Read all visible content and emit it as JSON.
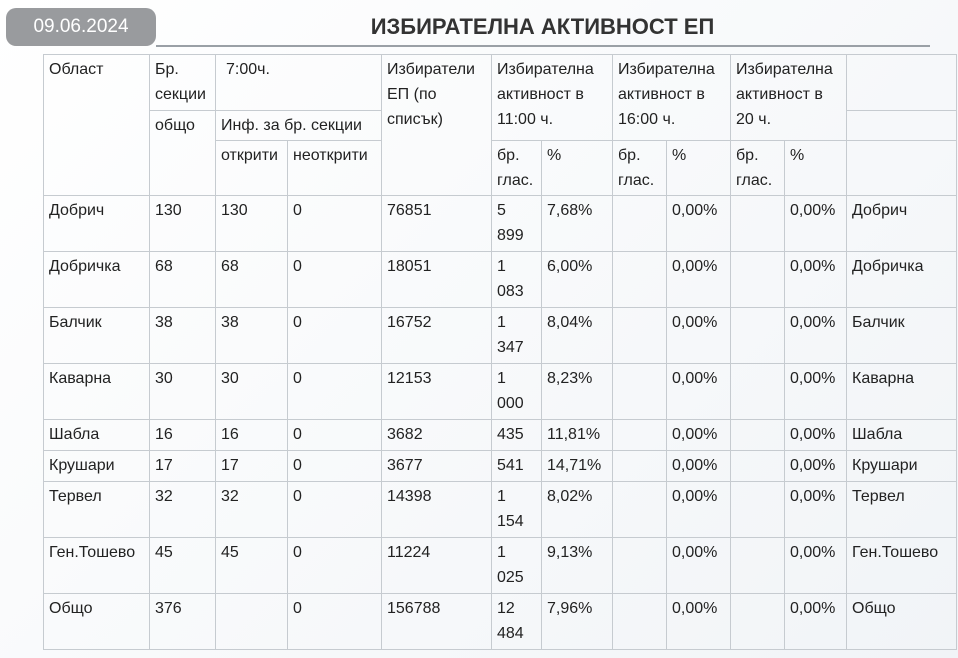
{
  "header": {
    "date": "09.06.2024",
    "title": "ИЗБИРАТЕЛНА АКТИВНОСТ ЕП"
  },
  "table": {
    "headers": {
      "oblast": "Област",
      "br_sekcii": "Бр. секции",
      "time_7": "7:00ч.",
      "obshto": "общо",
      "inf_sekcii": "Инф. за бр. секции",
      "otkriti": "открити",
      "neotkriti": "неоткрити",
      "izbirateli": "Избиратели ЕП (по списък)",
      "akt_11": "Избирателна активност в 11:00 ч.",
      "akt_16": "Избирателна активност в 16:00 ч.",
      "akt_20": "Избирателна активност в 20 ч.",
      "br_glas": "бр. глас.",
      "pct": "%"
    },
    "rows": [
      {
        "name": "Добрич",
        "sections": "130",
        "open": "130",
        "closed": "0",
        "voters": "76851",
        "v11": "5 899",
        "p11": "7,68%",
        "v16": "",
        "p16": "0,00%",
        "v20": "",
        "p20": "0,00%",
        "name2": "Добрич"
      },
      {
        "name": "Добричка",
        "sections": "68",
        "open": "68",
        "closed": "0",
        "voters": "18051",
        "v11": "1 083",
        "p11": "6,00%",
        "v16": "",
        "p16": "0,00%",
        "v20": "",
        "p20": "0,00%",
        "name2": "Добричка"
      },
      {
        "name": "Балчик",
        "sections": "38",
        "open": "38",
        "closed": "0",
        "voters": "16752",
        "v11": "1 347",
        "p11": "8,04%",
        "v16": "",
        "p16": "0,00%",
        "v20": "",
        "p20": "0,00%",
        "name2": "Балчик"
      },
      {
        "name": "Каварна",
        "sections": "30",
        "open": "30",
        "closed": "0",
        "voters": "12153",
        "v11": "1 000",
        "p11": "8,23%",
        "v16": "",
        "p16": "0,00%",
        "v20": "",
        "p20": "0,00%",
        "name2": "Каварна"
      },
      {
        "name": "Шабла",
        "sections": "16",
        "open": "16",
        "closed": "0",
        "voters": "3682",
        "v11": "435",
        "p11": "11,81%",
        "v16": "",
        "p16": "0,00%",
        "v20": "",
        "p20": "0,00%",
        "name2": "Шабла"
      },
      {
        "name": "Крушари",
        "sections": "17",
        "open": "17",
        "closed": "0",
        "voters": "3677",
        "v11": "541",
        "p11": "14,71%",
        "v16": "",
        "p16": "0,00%",
        "v20": "",
        "p20": "0,00%",
        "name2": "Крушари"
      },
      {
        "name": "Тервел",
        "sections": "32",
        "open": "32",
        "closed": "0",
        "voters": "14398",
        "v11": "1 154",
        "p11": "8,02%",
        "v16": "",
        "p16": "0,00%",
        "v20": "",
        "p20": "0,00%",
        "name2": "Тервел"
      },
      {
        "name": "Ген.Тошево",
        "sections": "45",
        "open": "45",
        "closed": "0",
        "voters": "11224",
        "v11": "1 025",
        "p11": "9,13%",
        "v16": "",
        "p16": "0,00%",
        "v20": "",
        "p20": "0,00%",
        "name2": "Ген.Тошево"
      },
      {
        "name": "Общо",
        "sections": "376",
        "open": "",
        "closed": "0",
        "voters": "156788",
        "v11": "12 484",
        "p11": "7,96%",
        "v16": "",
        "p16": "0,00%",
        "v20": "",
        "p20": "0,00%",
        "name2": "Общо"
      }
    ]
  }
}
